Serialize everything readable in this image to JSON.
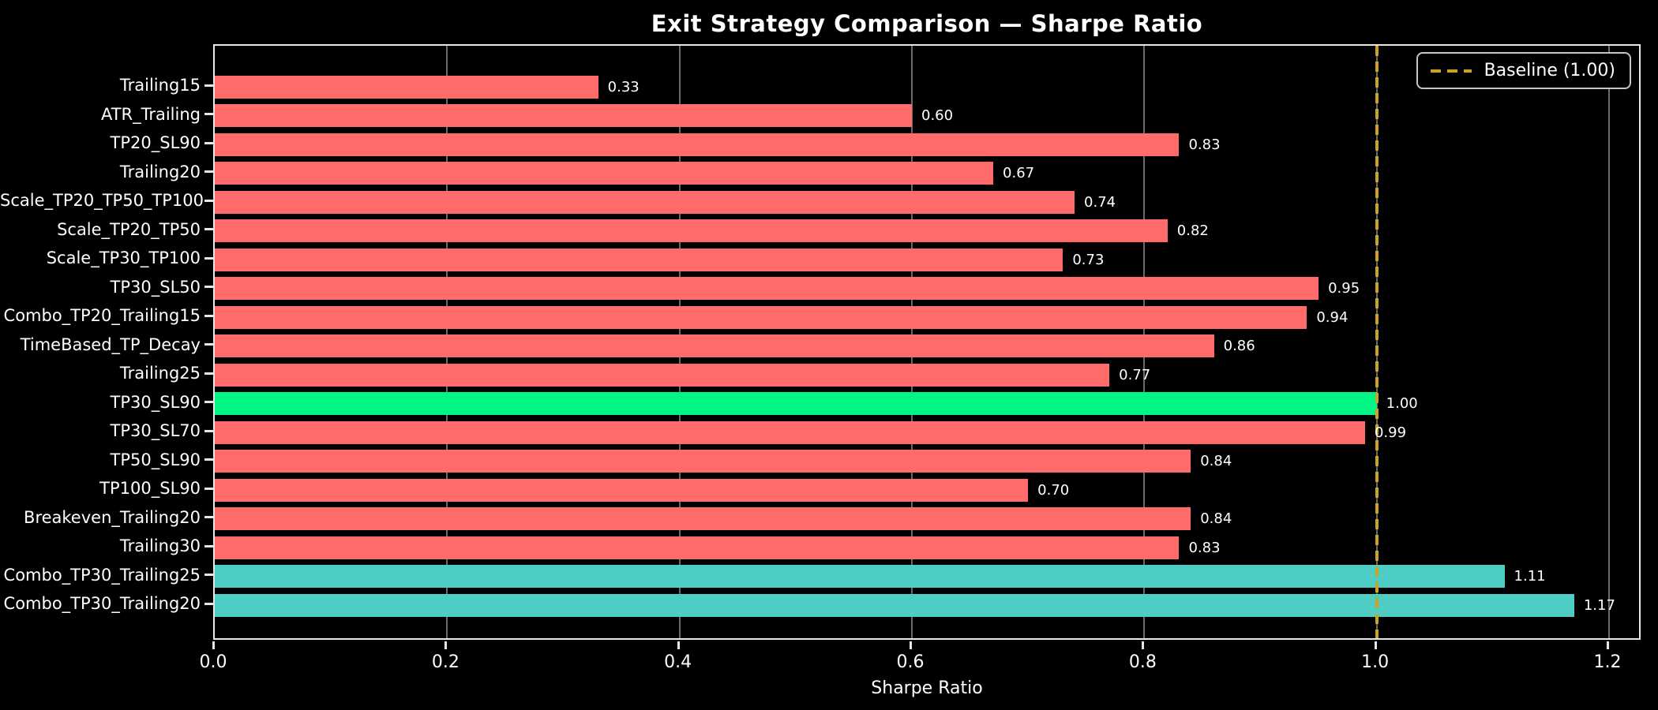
{
  "page": {
    "background": "#000000"
  },
  "chart_data": {
    "type": "bar",
    "orientation": "horizontal",
    "title": "Exit Strategy Comparison — Sharpe Ratio",
    "xlabel": "Sharpe Ratio",
    "ylabel": "",
    "xlim": [
      0.0,
      1.2285
    ],
    "grid": "vertical-only",
    "legend_position": "upper-right",
    "xticks": [
      {
        "value": 0.0,
        "label": "0.0"
      },
      {
        "value": 0.2,
        "label": "0.2"
      },
      {
        "value": 0.4,
        "label": "0.4"
      },
      {
        "value": 0.6,
        "label": "0.6"
      },
      {
        "value": 0.8,
        "label": "0.8"
      },
      {
        "value": 1.0,
        "label": "1.0"
      },
      {
        "value": 1.2,
        "label": "1.2"
      }
    ],
    "categories": [
      "Trailing15",
      "ATR_Trailing",
      "TP20_SL90",
      "Trailing20",
      "Scale_TP20_TP50_TP100",
      "Scale_TP20_TP50",
      "Scale_TP30_TP100",
      "TP30_SL50",
      "Combo_TP20_Trailing15",
      "TimeBased_TP_Decay",
      "Trailing25",
      "TP30_SL90",
      "TP30_SL70",
      "TP50_SL90",
      "TP100_SL90",
      "Breakeven_Trailing20",
      "Trailing30",
      "Combo_TP30_Trailing25",
      "Combo_TP30_Trailing20"
    ],
    "values": [
      0.33,
      0.6,
      0.83,
      0.67,
      0.74,
      0.82,
      0.73,
      0.95,
      0.94,
      0.86,
      0.77,
      1.0,
      0.99,
      0.84,
      0.7,
      0.84,
      0.83,
      1.11,
      1.17
    ],
    "value_labels": [
      "0.33",
      "0.60",
      "0.83",
      "0.67",
      "0.74",
      "0.82",
      "0.73",
      "0.95",
      "0.94",
      "0.86",
      "0.77",
      "1.00",
      "0.99",
      "0.84",
      "0.70",
      "0.84",
      "0.83",
      "1.11",
      "1.17"
    ],
    "bar_colors": [
      "#ff6b6b",
      "#ff6b6b",
      "#ff6b6b",
      "#ff6b6b",
      "#ff6b6b",
      "#ff6b6b",
      "#ff6b6b",
      "#ff6b6b",
      "#ff6b6b",
      "#ff6b6b",
      "#ff6b6b",
      "#00f585",
      "#ff6b6b",
      "#ff6b6b",
      "#ff6b6b",
      "#ff6b6b",
      "#ff6b6b",
      "#4ecdc4",
      "#4ecdc4"
    ],
    "baseline": {
      "value": 1.0,
      "style": "dashed",
      "color": "#c9a227"
    },
    "legend": {
      "entries": [
        {
          "label": "Baseline (1.00)",
          "color": "#c9a227",
          "line_style": "dashed"
        }
      ]
    },
    "colors": {
      "bar_default": "#ff6b6b",
      "bar_baseline_highlight": "#00f585",
      "bar_above_baseline": "#4ecdc4",
      "baseline_line": "#c9a227",
      "text": "#ffffff",
      "grid": "#6a6a6a",
      "spine": "#e6e6e6",
      "background": "#000000"
    }
  }
}
